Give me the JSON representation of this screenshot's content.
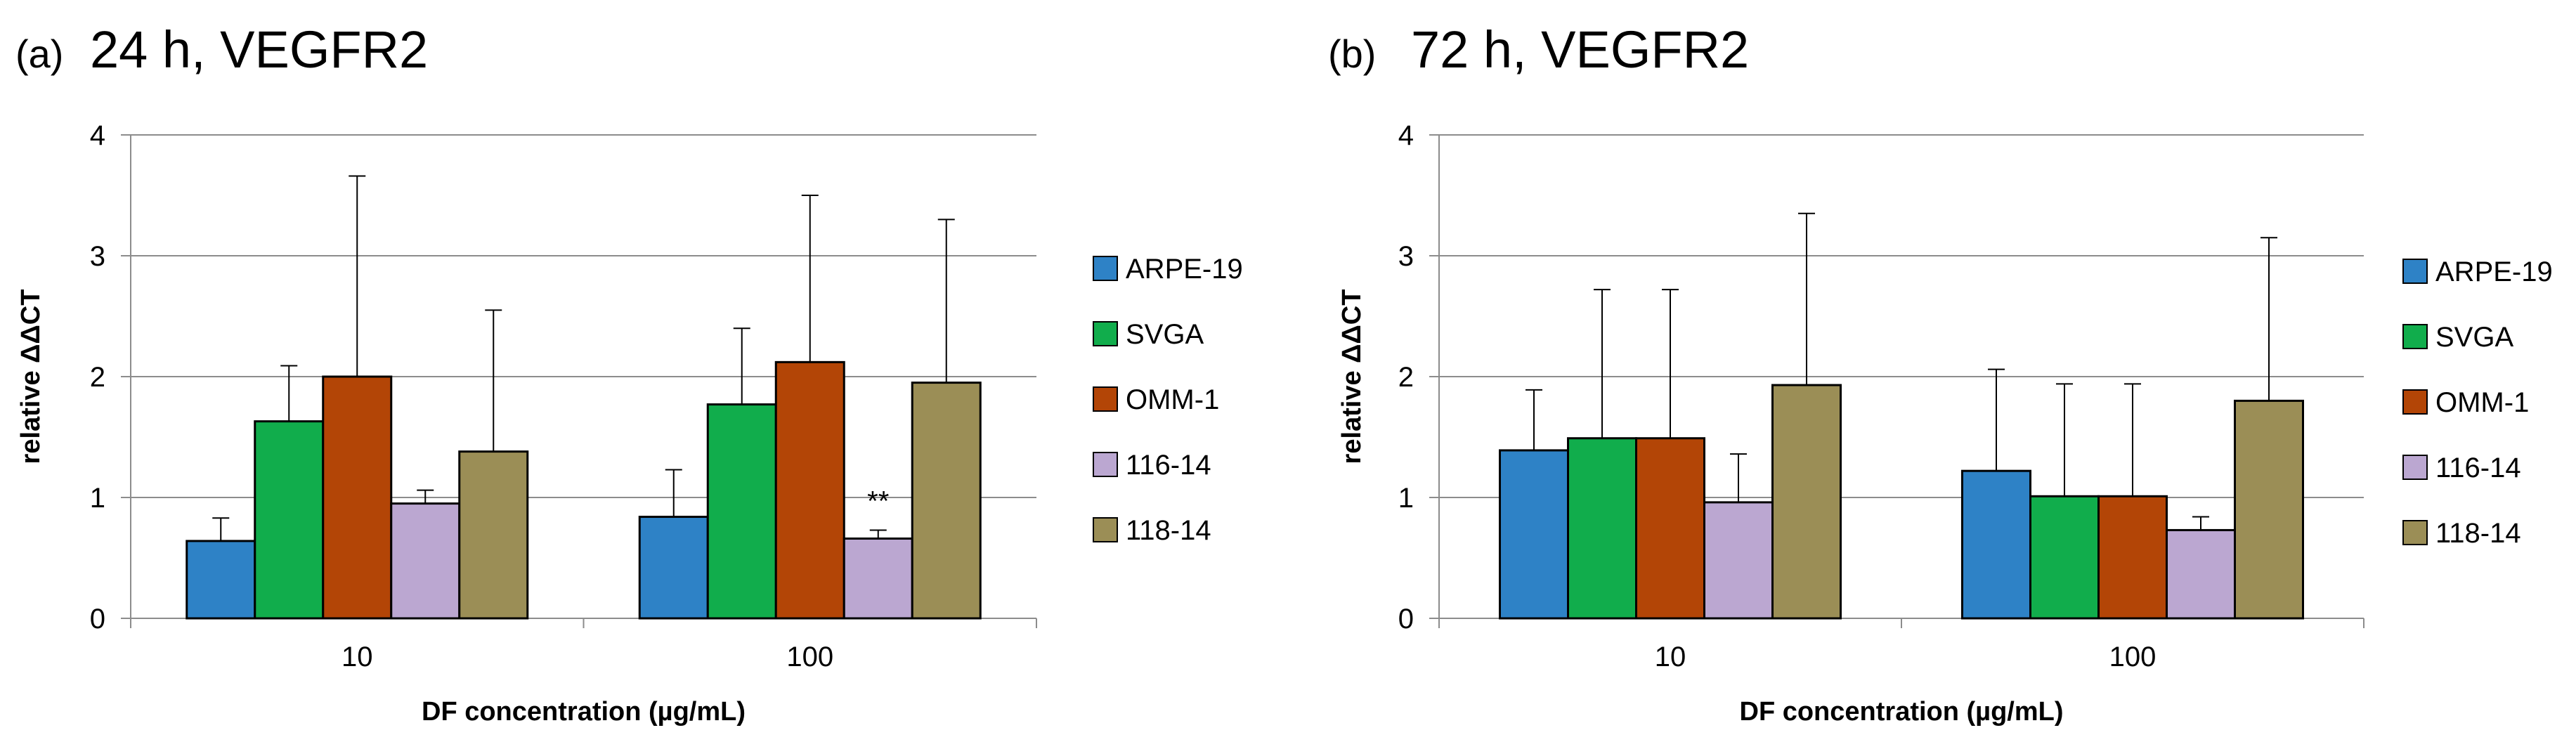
{
  "chart_data": [
    {
      "type": "bar",
      "panel_tag": "(a)",
      "title": "24 h, VEGFR2",
      "xlabel": "DF concentration (µg/mL)",
      "ylabel": "relative ΔΔCT",
      "ylim": [
        0,
        4
      ],
      "yticks": [
        "0",
        "1",
        "2",
        "3",
        "4"
      ],
      "categories": [
        "10",
        "100"
      ],
      "grid": true,
      "legend_position": "right",
      "series": [
        {
          "name": "ARPE-19",
          "color": "#2e82c6",
          "values": [
            0.64,
            0.84
          ],
          "errors": [
            0.19,
            0.39
          ]
        },
        {
          "name": "SVGA",
          "color": "#11ad4c",
          "values": [
            1.63,
            1.77
          ],
          "errors": [
            0.46,
            0.63
          ]
        },
        {
          "name": "OMM-1",
          "color": "#b34506",
          "values": [
            2.0,
            2.12
          ],
          "errors": [
            1.66,
            1.38
          ]
        },
        {
          "name": "116-14",
          "color": "#bba7d1",
          "values": [
            0.95,
            0.66
          ],
          "errors": [
            0.11,
            0.07
          ]
        },
        {
          "name": "118-14",
          "color": "#9b8e56",
          "values": [
            1.38,
            1.95
          ],
          "errors": [
            1.17,
            1.35
          ]
        }
      ],
      "annotations": [
        {
          "text": "**",
          "series": "116-14",
          "category": "100"
        }
      ]
    },
    {
      "type": "bar",
      "panel_tag": "(b)",
      "title": "72 h, VEGFR2",
      "xlabel": "DF concentration (µg/mL)",
      "ylabel": "relative ΔΔCT",
      "ylim": [
        0,
        4
      ],
      "yticks": [
        "0",
        "1",
        "2",
        "3",
        "4"
      ],
      "categories": [
        "10",
        "100"
      ],
      "grid": true,
      "legend_position": "right",
      "series": [
        {
          "name": "ARPE-19",
          "color": "#2e82c6",
          "values": [
            1.39,
            1.22
          ],
          "errors": [
            0.5,
            0.84
          ]
        },
        {
          "name": "SVGA",
          "color": "#11ad4c",
          "values": [
            1.49,
            1.01
          ],
          "errors": [
            1.23,
            0.93
          ]
        },
        {
          "name": "OMM-1",
          "color": "#b34506",
          "values": [
            1.49,
            1.01
          ],
          "errors": [
            1.23,
            0.93
          ]
        },
        {
          "name": "116-14",
          "color": "#bba7d1",
          "values": [
            0.96,
            0.73
          ],
          "errors": [
            0.4,
            0.11
          ]
        },
        {
          "name": "118-14",
          "color": "#9b8e56",
          "values": [
            1.93,
            1.8
          ],
          "errors": [
            1.42,
            1.35
          ]
        }
      ],
      "annotations": []
    }
  ]
}
